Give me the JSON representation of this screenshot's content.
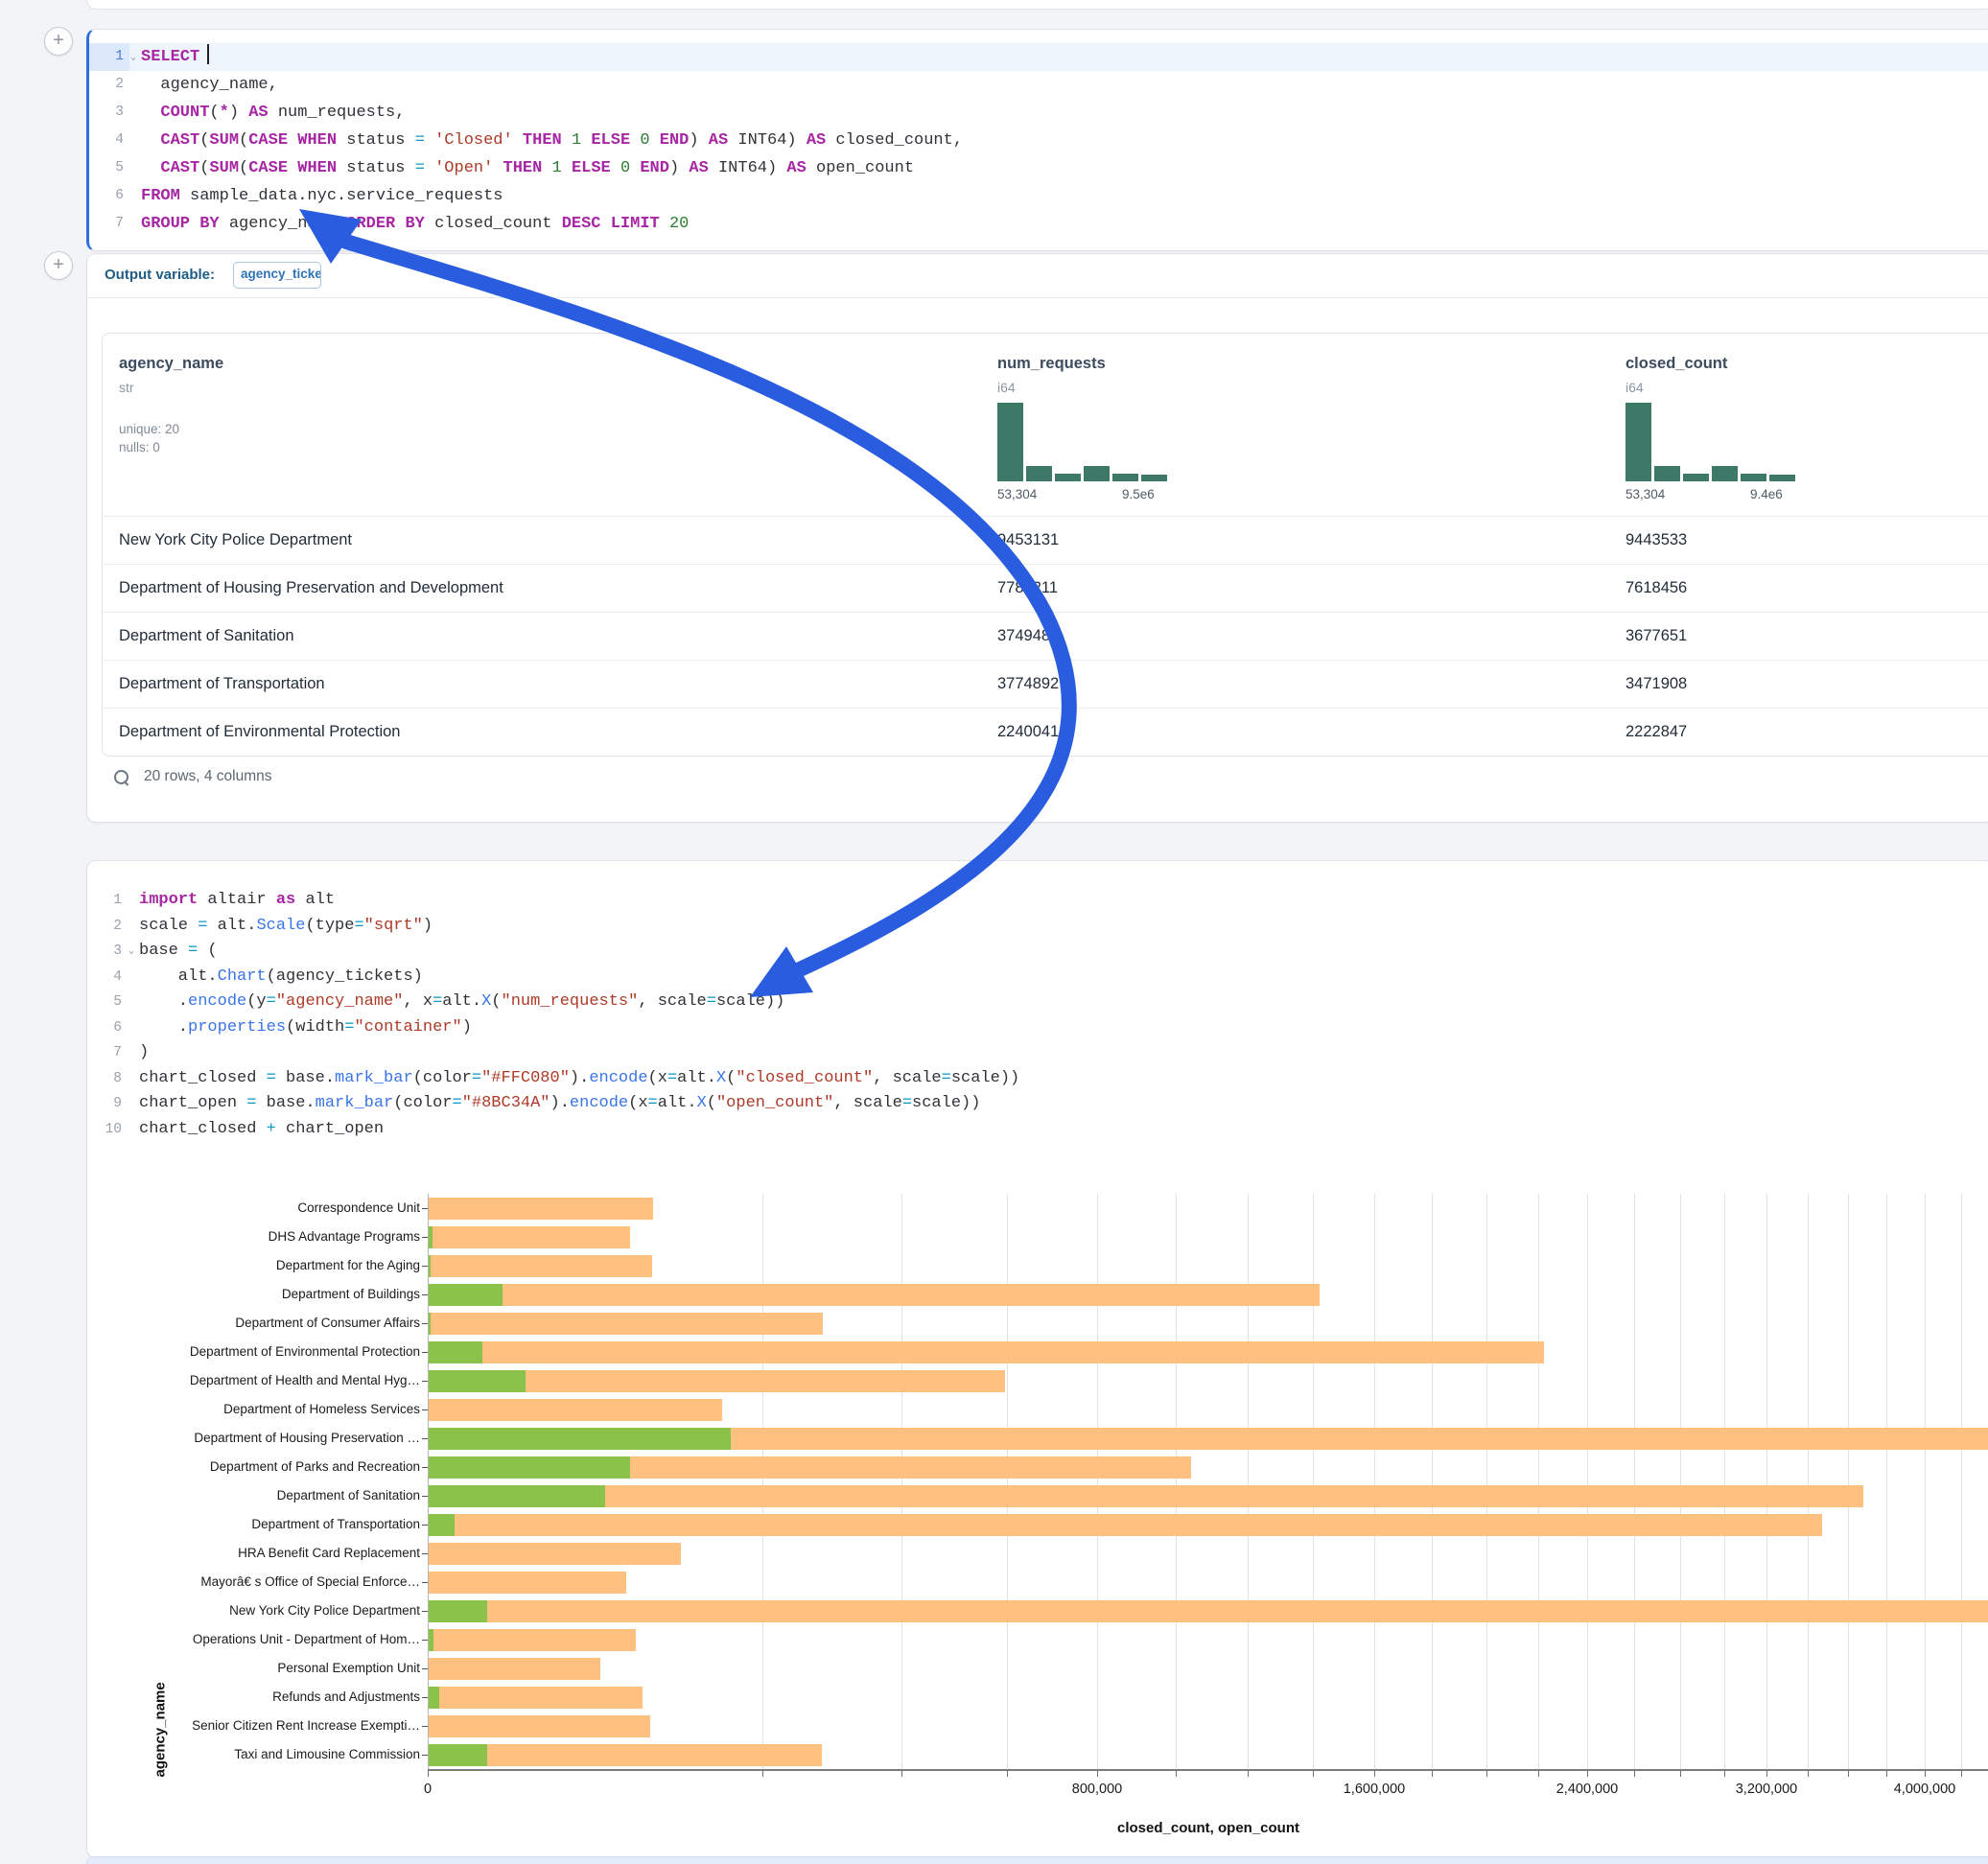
{
  "accent": {
    "arrow_color": "#2a5ce0",
    "focus_border": "#2e6fe0",
    "hist_color": "#3c7a67"
  },
  "icons": {
    "add": "+",
    "fold": "⌄",
    "search": "search-glyph"
  },
  "sql_cell": {
    "lines": [
      {
        "num": "1",
        "fold": true,
        "caret": true,
        "tokens": [
          {
            "c": "kw",
            "t": "SELECT"
          }
        ]
      },
      {
        "num": "2",
        "tokens": [
          {
            "c": "pl",
            "t": "  agency_name,"
          }
        ]
      },
      {
        "num": "3",
        "tokens": [
          {
            "c": "kw",
            "t": "  COUNT"
          },
          {
            "c": "pl",
            "t": "("
          },
          {
            "c": "kw",
            "t": "*"
          },
          {
            "c": "pl",
            "t": ") "
          },
          {
            "c": "kw",
            "t": "AS"
          },
          {
            "c": "pl",
            "t": " num_requests,"
          }
        ]
      },
      {
        "num": "4",
        "tokens": [
          {
            "c": "kw",
            "t": "  CAST"
          },
          {
            "c": "pl",
            "t": "("
          },
          {
            "c": "kw",
            "t": "SUM"
          },
          {
            "c": "pl",
            "t": "("
          },
          {
            "c": "kw",
            "t": "CASE"
          },
          {
            "c": "pl",
            "t": " "
          },
          {
            "c": "kw",
            "t": "WHEN"
          },
          {
            "c": "pl",
            "t": " status "
          },
          {
            "c": "op",
            "t": "="
          },
          {
            "c": "pl",
            "t": " "
          },
          {
            "c": "str",
            "t": "'Closed'"
          },
          {
            "c": "pl",
            "t": " "
          },
          {
            "c": "kw",
            "t": "THEN"
          },
          {
            "c": "pl",
            "t": " "
          },
          {
            "c": "num",
            "t": "1"
          },
          {
            "c": "pl",
            "t": " "
          },
          {
            "c": "kw",
            "t": "ELSE"
          },
          {
            "c": "pl",
            "t": " "
          },
          {
            "c": "num",
            "t": "0"
          },
          {
            "c": "pl",
            "t": " "
          },
          {
            "c": "kw",
            "t": "END"
          },
          {
            "c": "pl",
            "t": ") "
          },
          {
            "c": "kw",
            "t": "AS"
          },
          {
            "c": "pl",
            "t": " INT64) "
          },
          {
            "c": "kw",
            "t": "AS"
          },
          {
            "c": "pl",
            "t": " closed_count,"
          }
        ]
      },
      {
        "num": "5",
        "tokens": [
          {
            "c": "kw",
            "t": "  CAST"
          },
          {
            "c": "pl",
            "t": "("
          },
          {
            "c": "kw",
            "t": "SUM"
          },
          {
            "c": "pl",
            "t": "("
          },
          {
            "c": "kw",
            "t": "CASE"
          },
          {
            "c": "pl",
            "t": " "
          },
          {
            "c": "kw",
            "t": "WHEN"
          },
          {
            "c": "pl",
            "t": " status "
          },
          {
            "c": "op",
            "t": "="
          },
          {
            "c": "pl",
            "t": " "
          },
          {
            "c": "str",
            "t": "'Open'"
          },
          {
            "c": "pl",
            "t": " "
          },
          {
            "c": "kw",
            "t": "THEN"
          },
          {
            "c": "pl",
            "t": " "
          },
          {
            "c": "num",
            "t": "1"
          },
          {
            "c": "pl",
            "t": " "
          },
          {
            "c": "kw",
            "t": "ELSE"
          },
          {
            "c": "pl",
            "t": " "
          },
          {
            "c": "num",
            "t": "0"
          },
          {
            "c": "pl",
            "t": " "
          },
          {
            "c": "kw",
            "t": "END"
          },
          {
            "c": "pl",
            "t": ") "
          },
          {
            "c": "kw",
            "t": "AS"
          },
          {
            "c": "pl",
            "t": " INT64) "
          },
          {
            "c": "kw",
            "t": "AS"
          },
          {
            "c": "pl",
            "t": " open_count"
          }
        ]
      },
      {
        "num": "6",
        "tokens": [
          {
            "c": "kw",
            "t": "FROM"
          },
          {
            "c": "pl",
            "t": " sample_data.nyc.service_requests"
          }
        ]
      },
      {
        "num": "7",
        "tokens": [
          {
            "c": "kw",
            "t": "GROUP BY"
          },
          {
            "c": "pl",
            "t": " agency_name "
          },
          {
            "c": "kw",
            "t": "ORDER BY"
          },
          {
            "c": "pl",
            "t": " closed_count "
          },
          {
            "c": "kw",
            "t": "DESC"
          },
          {
            "c": "pl",
            "t": " "
          },
          {
            "c": "kw",
            "t": "LIMIT"
          },
          {
            "c": "pl",
            "t": " "
          },
          {
            "c": "num",
            "t": "20"
          }
        ]
      }
    ]
  },
  "output_bar": {
    "label": "Output variable:",
    "variable": "agency_tickets"
  },
  "table": {
    "columns": [
      {
        "name": "agency_name",
        "type": "str",
        "meta": [
          "unique: 20",
          "nulls: 0"
        ]
      },
      {
        "name": "num_requests",
        "type": "i64",
        "hist": {
          "bars": [
            1,
            0.2,
            0.1,
            0.2,
            0.1,
            0.09
          ],
          "min_label": "53,304",
          "max_label": "9.5e6"
        }
      },
      {
        "name": "closed_count",
        "type": "i64",
        "hist": {
          "bars": [
            1,
            0.2,
            0.1,
            0.2,
            0.1,
            0.09
          ],
          "min_label": "53,304",
          "max_label": "9.4e6"
        }
      }
    ],
    "rows": [
      {
        "agency": "New York City Police Department",
        "num": "9453131",
        "closed": "9443533"
      },
      {
        "agency": "Department of Housing Preservation and Development",
        "num": "7782211",
        "closed": "7618456"
      },
      {
        "agency": "Department of Sanitation",
        "num": "3749485",
        "closed": "3677651"
      },
      {
        "agency": "Department of Transportation",
        "num": "3774892",
        "closed": "3471908"
      },
      {
        "agency": "Department of Environmental Protection",
        "num": "2240041",
        "closed": "2222847"
      }
    ],
    "footer": "20 rows, 4 columns"
  },
  "python_cell": {
    "lines": [
      {
        "num": "1",
        "tokens": [
          {
            "c": "kw",
            "t": "import"
          },
          {
            "c": "pl",
            "t": " altair "
          },
          {
            "c": "kw",
            "t": "as"
          },
          {
            "c": "pl",
            "t": " alt"
          }
        ]
      },
      {
        "num": "2",
        "tokens": [
          {
            "c": "pl",
            "t": "scale "
          },
          {
            "c": "op",
            "t": "="
          },
          {
            "c": "pl",
            "t": " alt."
          },
          {
            "c": "fn",
            "t": "Scale"
          },
          {
            "c": "pl",
            "t": "(type"
          },
          {
            "c": "op",
            "t": "="
          },
          {
            "c": "str",
            "t": "\"sqrt\""
          },
          {
            "c": "pl",
            "t": ")"
          }
        ]
      },
      {
        "num": "3",
        "fold": true,
        "tokens": [
          {
            "c": "pl",
            "t": "base "
          },
          {
            "c": "op",
            "t": "="
          },
          {
            "c": "pl",
            "t": " ("
          }
        ]
      },
      {
        "num": "4",
        "tokens": [
          {
            "c": "pl",
            "t": "    alt."
          },
          {
            "c": "fn",
            "t": "Chart"
          },
          {
            "c": "pl",
            "t": "(agency_tickets)"
          }
        ]
      },
      {
        "num": "5",
        "tokens": [
          {
            "c": "pl",
            "t": "    ."
          },
          {
            "c": "fn",
            "t": "encode"
          },
          {
            "c": "pl",
            "t": "(y"
          },
          {
            "c": "op",
            "t": "="
          },
          {
            "c": "str",
            "t": "\"agency_name\""
          },
          {
            "c": "pl",
            "t": ", x"
          },
          {
            "c": "op",
            "t": "="
          },
          {
            "c": "pl",
            "t": "alt."
          },
          {
            "c": "fn",
            "t": "X"
          },
          {
            "c": "pl",
            "t": "("
          },
          {
            "c": "str",
            "t": "\"num_requests\""
          },
          {
            "c": "pl",
            "t": ", scale"
          },
          {
            "c": "op",
            "t": "="
          },
          {
            "c": "pl",
            "t": "scale))"
          }
        ]
      },
      {
        "num": "6",
        "tokens": [
          {
            "c": "pl",
            "t": "    ."
          },
          {
            "c": "fn",
            "t": "properties"
          },
          {
            "c": "pl",
            "t": "(width"
          },
          {
            "c": "op",
            "t": "="
          },
          {
            "c": "str",
            "t": "\"container\""
          },
          {
            "c": "pl",
            "t": ")"
          }
        ]
      },
      {
        "num": "7",
        "tokens": [
          {
            "c": "pl",
            "t": ")"
          }
        ]
      },
      {
        "num": "8",
        "tokens": [
          {
            "c": "pl",
            "t": "chart_closed "
          },
          {
            "c": "op",
            "t": "="
          },
          {
            "c": "pl",
            "t": " base."
          },
          {
            "c": "fn",
            "t": "mark_bar"
          },
          {
            "c": "pl",
            "t": "(color"
          },
          {
            "c": "op",
            "t": "="
          },
          {
            "c": "str",
            "t": "\"#FFC080\""
          },
          {
            "c": "pl",
            "t": ")."
          },
          {
            "c": "fn",
            "t": "encode"
          },
          {
            "c": "pl",
            "t": "(x"
          },
          {
            "c": "op",
            "t": "="
          },
          {
            "c": "pl",
            "t": "alt."
          },
          {
            "c": "fn",
            "t": "X"
          },
          {
            "c": "pl",
            "t": "("
          },
          {
            "c": "str",
            "t": "\"closed_count\""
          },
          {
            "c": "pl",
            "t": ", scale"
          },
          {
            "c": "op",
            "t": "="
          },
          {
            "c": "pl",
            "t": "scale))"
          }
        ]
      },
      {
        "num": "9",
        "tokens": [
          {
            "c": "pl",
            "t": "chart_open "
          },
          {
            "c": "op",
            "t": "="
          },
          {
            "c": "pl",
            "t": " base."
          },
          {
            "c": "fn",
            "t": "mark_bar"
          },
          {
            "c": "pl",
            "t": "(color"
          },
          {
            "c": "op",
            "t": "="
          },
          {
            "c": "str",
            "t": "\"#8BC34A\""
          },
          {
            "c": "pl",
            "t": ")."
          },
          {
            "c": "fn",
            "t": "encode"
          },
          {
            "c": "pl",
            "t": "(x"
          },
          {
            "c": "op",
            "t": "="
          },
          {
            "c": "pl",
            "t": "alt."
          },
          {
            "c": "fn",
            "t": "X"
          },
          {
            "c": "pl",
            "t": "("
          },
          {
            "c": "str",
            "t": "\"open_count\""
          },
          {
            "c": "pl",
            "t": ", scale"
          },
          {
            "c": "op",
            "t": "="
          },
          {
            "c": "pl",
            "t": "scale))"
          }
        ]
      },
      {
        "num": "10",
        "tokens": [
          {
            "c": "pl",
            "t": "chart_closed "
          },
          {
            "c": "op",
            "t": "+"
          },
          {
            "c": "pl",
            "t": " chart_open"
          }
        ]
      }
    ]
  },
  "chart_data": {
    "type": "bar",
    "orientation": "horizontal",
    "x_scale": "sqrt",
    "title": "",
    "xlabel": "closed_count, open_count",
    "ylabel": "agency_name",
    "grid": true,
    "legend": "none",
    "categories": [
      "Correspondence Unit",
      "DHS Advantage Programs",
      "Department for the Aging",
      "Department of Buildings",
      "Department of Consumer Affairs",
      "Department of Environmental Protection",
      "Department of Health and Mental Hyg…",
      "Department of Homeless Services",
      "Department of Housing Preservation …",
      "Department of Parks and Recreation",
      "Department of Sanitation",
      "Department of Transportation",
      "HRA Benefit Card Replacement",
      "Mayorâ€ s Office of Special Enforce…",
      "New York City Police Department",
      "Operations Unit - Department of Hom…",
      "Personal Exemption Unit",
      "Refunds and Adjustments",
      "Senior Citizen Rent Increase Exempti…",
      "Taxi and Limousine Commission"
    ],
    "series": [
      {
        "name": "closed_count",
        "color": "#FFC080",
        "values": [
          91000,
          73000,
          90000,
          1420000,
          279000,
          2222847,
          595000,
          155000,
          7618456,
          1040000,
          3677651,
          3471908,
          114000,
          70000,
          9443533,
          77000,
          53304,
          82000,
          88000,
          277000
        ]
      },
      {
        "name": "open_count",
        "color": "#8BC34A",
        "values": [
          0,
          40,
          15,
          10000,
          15,
          5300,
          17000,
          0,
          163755,
          73000,
          56000,
          1300,
          0,
          0,
          6300,
          60,
          0,
          240,
          0,
          6300
        ]
      }
    ],
    "x_axis": {
      "tick_interval": 200000,
      "label_interval": 800000,
      "labeled_ticks": [
        {
          "value": 0,
          "label": "0"
        },
        {
          "value": 800000,
          "label": "800,000"
        },
        {
          "value": 1600000,
          "label": "1,600,000"
        },
        {
          "value": 2400000,
          "label": "2,400,000"
        },
        {
          "value": 3200000,
          "label": "3,200,000"
        },
        {
          "value": 4000000,
          "label": "4,000,000"
        }
      ],
      "visible_max": 4350000
    }
  }
}
